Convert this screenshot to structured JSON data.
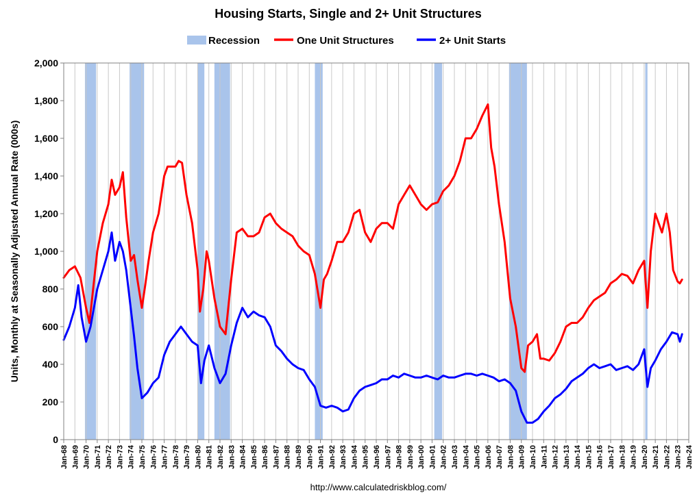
{
  "chart_data": {
    "type": "line",
    "title": "Housing Starts, Single and 2+ Unit Structures",
    "ylabel": "Units, Monthly at Seasonally Adjusted Annual Rate (000s)",
    "xlabel": "",
    "ylim": [
      0,
      2000
    ],
    "yticks": [
      "0",
      "200",
      "400",
      "600",
      "800",
      "1,000",
      "1,200",
      "1,400",
      "1,600",
      "1,800",
      "2,000"
    ],
    "xlim": [
      1968.0,
      2024.0
    ],
    "xticks": [
      "Jan-68",
      "Jan-69",
      "Jan-70",
      "Jan-71",
      "Jan-72",
      "Jan-73",
      "Jan-74",
      "Jan-75",
      "Jan-76",
      "Jan-77",
      "Jan-78",
      "Jan-79",
      "Jan-80",
      "Jan-81",
      "Jan-82",
      "Jan-83",
      "Jan-84",
      "Jan-85",
      "Jan-86",
      "Jan-87",
      "Jan-88",
      "Jan-89",
      "Jan-90",
      "Jan-91",
      "Jan-92",
      "Jan-93",
      "Jan-94",
      "Jan-95",
      "Jan-96",
      "Jan-97",
      "Jan-98",
      "Jan-99",
      "Jan-00",
      "Jan-01",
      "Jan-02",
      "Jan-03",
      "Jan-04",
      "Jan-05",
      "Jan-06",
      "Jan-07",
      "Jan-08",
      "Jan-09",
      "Jan-10",
      "Jan-11",
      "Jan-12",
      "Jan-13",
      "Jan-14",
      "Jan-15",
      "Jan-16",
      "Jan-17",
      "Jan-18",
      "Jan-19",
      "Jan-20",
      "Jan-21",
      "Jan-22",
      "Jan-23",
      "Jan-24"
    ],
    "grid": "vertical",
    "legend_position": "top",
    "source": "http://www.calculatedriskblog.com/",
    "recessions": [
      [
        1969.9,
        1970.9
      ],
      [
        1973.9,
        1975.2
      ],
      [
        1980.0,
        1980.6
      ],
      [
        1981.5,
        1982.9
      ],
      [
        1990.5,
        1991.2
      ],
      [
        2001.2,
        2001.9
      ],
      [
        2007.9,
        2009.5
      ],
      [
        2020.1,
        2020.3
      ]
    ],
    "series": [
      {
        "name": "One Unit Structures",
        "color": "#ff0000",
        "points": [
          [
            1968.0,
            860
          ],
          [
            1968.5,
            900
          ],
          [
            1969.0,
            920
          ],
          [
            1969.5,
            860
          ],
          [
            1970.0,
            700
          ],
          [
            1970.3,
            620
          ],
          [
            1970.6,
            780
          ],
          [
            1971.0,
            1000
          ],
          [
            1971.5,
            1150
          ],
          [
            1972.0,
            1250
          ],
          [
            1972.3,
            1380
          ],
          [
            1972.6,
            1300
          ],
          [
            1973.0,
            1340
          ],
          [
            1973.3,
            1420
          ],
          [
            1973.6,
            1180
          ],
          [
            1974.0,
            950
          ],
          [
            1974.3,
            980
          ],
          [
            1974.6,
            850
          ],
          [
            1975.0,
            700
          ],
          [
            1975.3,
            820
          ],
          [
            1975.6,
            950
          ],
          [
            1976.0,
            1100
          ],
          [
            1976.5,
            1200
          ],
          [
            1977.0,
            1400
          ],
          [
            1977.3,
            1450
          ],
          [
            1977.6,
            1450
          ],
          [
            1978.0,
            1450
          ],
          [
            1978.3,
            1480
          ],
          [
            1978.6,
            1470
          ],
          [
            1979.0,
            1300
          ],
          [
            1979.5,
            1150
          ],
          [
            1980.0,
            900
          ],
          [
            1980.2,
            680
          ],
          [
            1980.5,
            800
          ],
          [
            1980.8,
            1000
          ],
          [
            1981.0,
            950
          ],
          [
            1981.5,
            750
          ],
          [
            1982.0,
            600
          ],
          [
            1982.5,
            560
          ],
          [
            1983.0,
            850
          ],
          [
            1983.5,
            1100
          ],
          [
            1984.0,
            1120
          ],
          [
            1984.5,
            1080
          ],
          [
            1985.0,
            1080
          ],
          [
            1985.5,
            1100
          ],
          [
            1986.0,
            1180
          ],
          [
            1986.5,
            1200
          ],
          [
            1987.0,
            1150
          ],
          [
            1987.5,
            1120
          ],
          [
            1988.0,
            1100
          ],
          [
            1988.5,
            1080
          ],
          [
            1989.0,
            1030
          ],
          [
            1989.5,
            1000
          ],
          [
            1990.0,
            980
          ],
          [
            1990.5,
            880
          ],
          [
            1991.0,
            700
          ],
          [
            1991.3,
            850
          ],
          [
            1991.6,
            880
          ],
          [
            1992.0,
            950
          ],
          [
            1992.5,
            1050
          ],
          [
            1993.0,
            1050
          ],
          [
            1993.5,
            1100
          ],
          [
            1994.0,
            1200
          ],
          [
            1994.5,
            1220
          ],
          [
            1995.0,
            1100
          ],
          [
            1995.5,
            1050
          ],
          [
            1996.0,
            1120
          ],
          [
            1996.5,
            1150
          ],
          [
            1997.0,
            1150
          ],
          [
            1997.5,
            1120
          ],
          [
            1998.0,
            1250
          ],
          [
            1998.5,
            1300
          ],
          [
            1999.0,
            1350
          ],
          [
            1999.5,
            1300
          ],
          [
            2000.0,
            1250
          ],
          [
            2000.5,
            1220
          ],
          [
            2001.0,
            1250
          ],
          [
            2001.5,
            1260
          ],
          [
            2002.0,
            1320
          ],
          [
            2002.5,
            1350
          ],
          [
            2003.0,
            1400
          ],
          [
            2003.5,
            1480
          ],
          [
            2004.0,
            1600
          ],
          [
            2004.5,
            1600
          ],
          [
            2005.0,
            1650
          ],
          [
            2005.5,
            1720
          ],
          [
            2006.0,
            1780
          ],
          [
            2006.3,
            1550
          ],
          [
            2006.6,
            1450
          ],
          [
            2007.0,
            1250
          ],
          [
            2007.5,
            1050
          ],
          [
            2008.0,
            750
          ],
          [
            2008.5,
            600
          ],
          [
            2009.0,
            380
          ],
          [
            2009.3,
            360
          ],
          [
            2009.6,
            500
          ],
          [
            2010.0,
            520
          ],
          [
            2010.4,
            560
          ],
          [
            2010.7,
            430
          ],
          [
            2011.0,
            430
          ],
          [
            2011.5,
            420
          ],
          [
            2012.0,
            460
          ],
          [
            2012.5,
            520
          ],
          [
            2013.0,
            600
          ],
          [
            2013.5,
            620
          ],
          [
            2014.0,
            620
          ],
          [
            2014.5,
            650
          ],
          [
            2015.0,
            700
          ],
          [
            2015.5,
            740
          ],
          [
            2016.0,
            760
          ],
          [
            2016.5,
            780
          ],
          [
            2017.0,
            830
          ],
          [
            2017.5,
            850
          ],
          [
            2018.0,
            880
          ],
          [
            2018.5,
            870
          ],
          [
            2019.0,
            830
          ],
          [
            2019.5,
            900
          ],
          [
            2020.0,
            950
          ],
          [
            2020.3,
            700
          ],
          [
            2020.6,
            1000
          ],
          [
            2021.0,
            1200
          ],
          [
            2021.3,
            1150
          ],
          [
            2021.6,
            1100
          ],
          [
            2022.0,
            1200
          ],
          [
            2022.3,
            1100
          ],
          [
            2022.6,
            900
          ],
          [
            2023.0,
            840
          ],
          [
            2023.2,
            830
          ],
          [
            2023.4,
            850
          ]
        ]
      },
      {
        "name": "2+ Unit Starts",
        "color": "#0000ff",
        "points": [
          [
            1968.0,
            530
          ],
          [
            1968.5,
            600
          ],
          [
            1969.0,
            700
          ],
          [
            1969.3,
            820
          ],
          [
            1969.6,
            650
          ],
          [
            1970.0,
            520
          ],
          [
            1970.4,
            600
          ],
          [
            1970.7,
            700
          ],
          [
            1971.0,
            800
          ],
          [
            1971.5,
            900
          ],
          [
            1972.0,
            1000
          ],
          [
            1972.3,
            1100
          ],
          [
            1972.6,
            950
          ],
          [
            1973.0,
            1050
          ],
          [
            1973.3,
            1000
          ],
          [
            1973.6,
            900
          ],
          [
            1974.0,
            700
          ],
          [
            1974.3,
            550
          ],
          [
            1974.6,
            380
          ],
          [
            1975.0,
            220
          ],
          [
            1975.5,
            250
          ],
          [
            1976.0,
            300
          ],
          [
            1976.5,
            330
          ],
          [
            1977.0,
            450
          ],
          [
            1977.5,
            520
          ],
          [
            1978.0,
            560
          ],
          [
            1978.5,
            600
          ],
          [
            1979.0,
            560
          ],
          [
            1979.5,
            520
          ],
          [
            1980.0,
            500
          ],
          [
            1980.3,
            300
          ],
          [
            1980.6,
            420
          ],
          [
            1981.0,
            500
          ],
          [
            1981.5,
            380
          ],
          [
            1982.0,
            300
          ],
          [
            1982.5,
            350
          ],
          [
            1983.0,
            500
          ],
          [
            1983.5,
            620
          ],
          [
            1984.0,
            700
          ],
          [
            1984.5,
            650
          ],
          [
            1985.0,
            680
          ],
          [
            1985.5,
            660
          ],
          [
            1986.0,
            650
          ],
          [
            1986.5,
            600
          ],
          [
            1987.0,
            500
          ],
          [
            1987.5,
            470
          ],
          [
            1988.0,
            430
          ],
          [
            1988.5,
            400
          ],
          [
            1989.0,
            380
          ],
          [
            1989.5,
            370
          ],
          [
            1990.0,
            320
          ],
          [
            1990.5,
            280
          ],
          [
            1991.0,
            180
          ],
          [
            1991.5,
            170
          ],
          [
            1992.0,
            180
          ],
          [
            1992.5,
            170
          ],
          [
            1993.0,
            150
          ],
          [
            1993.5,
            160
          ],
          [
            1994.0,
            220
          ],
          [
            1994.5,
            260
          ],
          [
            1995.0,
            280
          ],
          [
            1995.5,
            290
          ],
          [
            1996.0,
            300
          ],
          [
            1996.5,
            320
          ],
          [
            1997.0,
            320
          ],
          [
            1997.5,
            340
          ],
          [
            1998.0,
            330
          ],
          [
            1998.5,
            350
          ],
          [
            1999.0,
            340
          ],
          [
            1999.5,
            330
          ],
          [
            2000.0,
            330
          ],
          [
            2000.5,
            340
          ],
          [
            2001.0,
            330
          ],
          [
            2001.5,
            320
          ],
          [
            2002.0,
            340
          ],
          [
            2002.5,
            330
          ],
          [
            2003.0,
            330
          ],
          [
            2003.5,
            340
          ],
          [
            2004.0,
            350
          ],
          [
            2004.5,
            350
          ],
          [
            2005.0,
            340
          ],
          [
            2005.5,
            350
          ],
          [
            2006.0,
            340
          ],
          [
            2006.5,
            330
          ],
          [
            2007.0,
            310
          ],
          [
            2007.5,
            320
          ],
          [
            2008.0,
            300
          ],
          [
            2008.5,
            260
          ],
          [
            2009.0,
            150
          ],
          [
            2009.5,
            90
          ],
          [
            2010.0,
            90
          ],
          [
            2010.5,
            110
          ],
          [
            2011.0,
            150
          ],
          [
            2011.5,
            180
          ],
          [
            2012.0,
            220
          ],
          [
            2012.5,
            240
          ],
          [
            2013.0,
            270
          ],
          [
            2013.5,
            310
          ],
          [
            2014.0,
            330
          ],
          [
            2014.5,
            350
          ],
          [
            2015.0,
            380
          ],
          [
            2015.5,
            400
          ],
          [
            2016.0,
            380
          ],
          [
            2016.5,
            390
          ],
          [
            2017.0,
            400
          ],
          [
            2017.5,
            370
          ],
          [
            2018.0,
            380
          ],
          [
            2018.5,
            390
          ],
          [
            2019.0,
            370
          ],
          [
            2019.5,
            400
          ],
          [
            2020.0,
            480
          ],
          [
            2020.3,
            280
          ],
          [
            2020.6,
            380
          ],
          [
            2021.0,
            420
          ],
          [
            2021.5,
            480
          ],
          [
            2022.0,
            520
          ],
          [
            2022.5,
            570
          ],
          [
            2023.0,
            560
          ],
          [
            2023.2,
            520
          ],
          [
            2023.4,
            560
          ]
        ]
      }
    ]
  },
  "legend": {
    "recession_label": "Recession",
    "series_labels": [
      "One Unit Structures",
      "2+ Unit Starts"
    ]
  },
  "colors": {
    "one_unit": "#ff0000",
    "two_plus": "#0000ff",
    "recession": "#a9c4eb",
    "grid": "#c8c8c8"
  }
}
